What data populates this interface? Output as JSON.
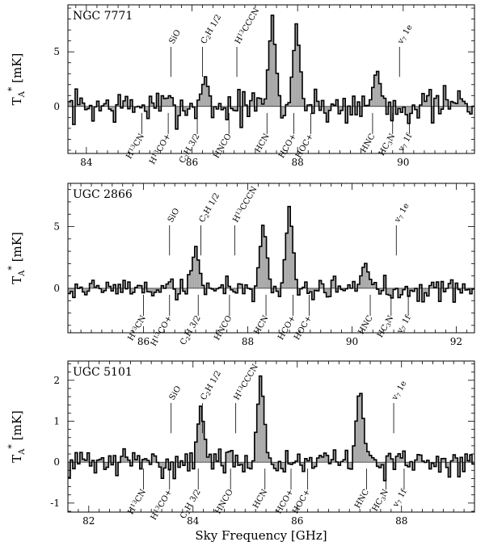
{
  "figure": {
    "xlabel": "Sky Frequency [GHz]",
    "ylabel_main": "T",
    "ylabel_sub": "A",
    "ylabel_sup": "*",
    "ylabel_unit": "[mK]"
  },
  "chart_data": [
    {
      "type": "bar",
      "title": "NGC 7771",
      "xlabel": "Sky Frequency [GHz]",
      "ylabel": "TA* [mK]",
      "xlim": [
        83.65,
        91.35
      ],
      "ylim": [
        -4.3,
        9.3
      ],
      "xticks": [
        84,
        86,
        88,
        90
      ],
      "yticks": [
        0,
        5
      ],
      "grid": false,
      "features": [
        {
          "x": 86.25,
          "y": 2.8
        },
        {
          "x": 87.52,
          "y": 8.5
        },
        {
          "x": 87.98,
          "y": 7.8
        },
        {
          "x": 89.5,
          "y": 3.6
        },
        {
          "x": 91.1,
          "y": 0.7
        }
      ],
      "lines_up": [
        {
          "label": "SiO",
          "x": 85.6
        },
        {
          "label": "C2H 1/2",
          "x": 86.2
        },
        {
          "label": "H13CCCN",
          "x": 86.85
        },
        {
          "label": "v7 1e",
          "x": 89.93
        }
      ],
      "lines_down": [
        {
          "label": "H13CN",
          "x": 85.05
        },
        {
          "label": "H13CO+",
          "x": 85.55
        },
        {
          "label": "C2H 3/2",
          "x": 86.1
        },
        {
          "label": "HNCO",
          "x": 86.7
        },
        {
          "label": "HCN",
          "x": 87.42
        },
        {
          "label": "HCO+",
          "x": 87.93
        },
        {
          "label": "HOC+",
          "x": 88.25
        },
        {
          "label": "HNC",
          "x": 89.42
        },
        {
          "label": "HC3N",
          "x": 89.8
        },
        {
          "label": "v7 1f",
          "x": 90.12
        }
      ]
    },
    {
      "type": "bar",
      "title": "UGC 2866",
      "xlabel": "Sky Frequency [GHz]",
      "ylabel": "TA* [mK]",
      "xlim": [
        84.55,
        92.35
      ],
      "ylim": [
        -3.6,
        8.5
      ],
      "xticks": [
        86,
        88,
        90,
        92
      ],
      "yticks": [
        0,
        5
      ],
      "grid": false,
      "features": [
        {
          "x": 87.0,
          "y": 3.5
        },
        {
          "x": 88.3,
          "y": 5.5
        },
        {
          "x": 88.8,
          "y": 6.9
        },
        {
          "x": 90.25,
          "y": 2.2
        }
      ],
      "lines_up": [
        {
          "label": "SiO",
          "x": 86.5
        },
        {
          "label": "C2H 1/2",
          "x": 87.1
        },
        {
          "label": "H13CCCN",
          "x": 87.75
        },
        {
          "label": "v7 1e",
          "x": 90.85
        }
      ],
      "lines_down": [
        {
          "label": "H13CN",
          "x": 86.0
        },
        {
          "label": "H13CO+",
          "x": 86.5
        },
        {
          "label": "C2H 3/2",
          "x": 87.05
        },
        {
          "label": "HNCO",
          "x": 87.65
        },
        {
          "label": "HCN",
          "x": 88.35
        },
        {
          "label": "HCO+",
          "x": 88.87
        },
        {
          "label": "HOC+",
          "x": 89.18
        },
        {
          "label": "HNC",
          "x": 90.35
        },
        {
          "label": "HC3N",
          "x": 90.75
        },
        {
          "label": "v7 1f",
          "x": 91.08
        }
      ]
    },
    {
      "type": "bar",
      "title": "UGC 5101",
      "xlabel": "Sky Frequency [GHz]",
      "ylabel": "TA* [mK]",
      "xlim": [
        81.6,
        89.4
      ],
      "ylim": [
        -1.22,
        2.47
      ],
      "xticks": [
        82,
        84,
        86,
        88
      ],
      "yticks": [
        -1,
        0,
        1,
        2
      ],
      "grid": false,
      "features": [
        {
          "x": 84.15,
          "y": 1.4
        },
        {
          "x": 85.3,
          "y": 2.2
        },
        {
          "x": 87.2,
          "y": 1.95
        }
      ],
      "lines_up": [
        {
          "label": "SiO",
          "x": 83.58
        },
        {
          "label": "C2H 1/2",
          "x": 84.18
        },
        {
          "label": "H13CCCN",
          "x": 84.82
        },
        {
          "label": "v7 1e",
          "x": 87.85
        }
      ],
      "lines_down": [
        {
          "label": "H13CN",
          "x": 83.05
        },
        {
          "label": "H13CO+",
          "x": 83.55
        },
        {
          "label": "C2H 3/2",
          "x": 84.1
        },
        {
          "label": "HNCO",
          "x": 84.72
        },
        {
          "label": "HCN",
          "x": 85.38
        },
        {
          "label": "HCO+",
          "x": 85.88
        },
        {
          "label": "HOC+",
          "x": 86.2
        },
        {
          "label": "HNC",
          "x": 87.33
        },
        {
          "label": "HC3N",
          "x": 87.7
        },
        {
          "label": "v7 1f",
          "x": 88.05
        }
      ]
    }
  ]
}
